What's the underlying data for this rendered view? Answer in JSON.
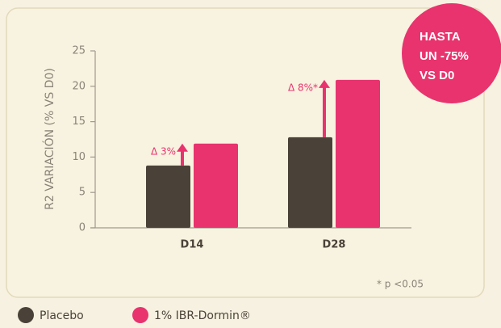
{
  "chart_data": {
    "type": "bar",
    "y_label": "R2 VARIACIÓN (% VS D0)",
    "categories": [
      "D14",
      "D28"
    ],
    "series": [
      {
        "name": "Placebo",
        "color": "#4a4238",
        "values": [
          8.8,
          12.8
        ]
      },
      {
        "name": "1% IBR-Dormin®",
        "color": "#e8336e",
        "values": [
          11.9,
          20.9
        ]
      }
    ],
    "ylim": [
      0,
      25
    ],
    "yticks": [
      0,
      5,
      10,
      15,
      20,
      25
    ],
    "grid": false,
    "annotations": [
      "Δ 3%",
      "Δ 8%*"
    ],
    "footnote": "* p <0.05",
    "badge": [
      "HASTA",
      "UN -75%",
      "VS D0"
    ],
    "legend": "bottom-left"
  }
}
